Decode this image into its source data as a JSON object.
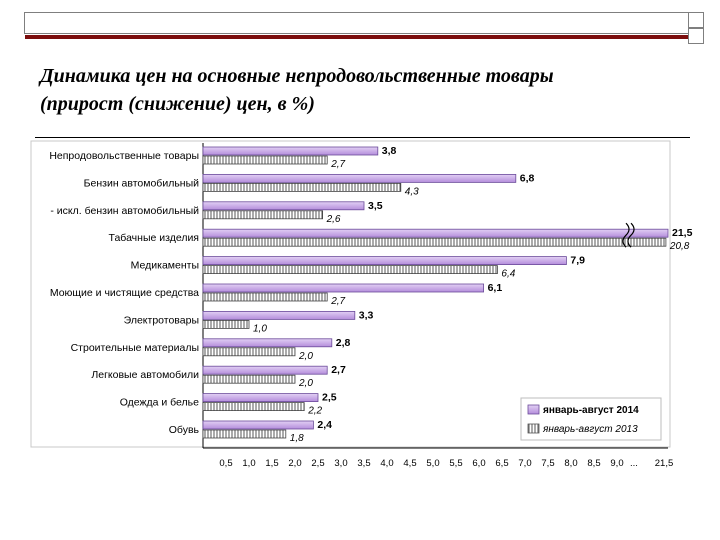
{
  "title_line1": "Динамика цен на основные  непродовольственные товары",
  "title_line2": "(прирост (снижение) цен, в %)",
  "chart_data": {
    "type": "bar",
    "orientation": "horizontal",
    "categories": [
      "Непродовольственные товары",
      "Бензин автомобильный",
      "- искл. бензин автомобильный",
      "Табачные изделия",
      "Медикаменты",
      "Моющие и чистящие средства",
      "Электротовары",
      "Строительные материалы",
      "Легковые автомобили",
      "Одежда и белье",
      "Обувь"
    ],
    "series": [
      {
        "name": "январь-август 2014",
        "values": [
          3.8,
          6.8,
          3.5,
          21.5,
          7.9,
          6.1,
          3.3,
          2.8,
          2.7,
          2.5,
          2.4
        ],
        "color": "#c9a9e6",
        "style": "solid"
      },
      {
        "name": "январь-август 2013",
        "values": [
          2.7,
          4.3,
          2.6,
          20.8,
          6.4,
          2.7,
          1.0,
          2.0,
          2.0,
          2.2,
          1.8
        ],
        "color": "#ffffff",
        "style": "hatched"
      }
    ],
    "series_labels": [
      [
        "3,8",
        "6,8",
        "3,5",
        "21,5",
        "7,9",
        "6,1",
        "3,3",
        "2,8",
        "2,7",
        "2,5",
        "2,4"
      ],
      [
        "2,7",
        "4,3",
        "2,6",
        "20,8",
        "6,4",
        "2,7",
        "1,0",
        "2,0",
        "2,0",
        "2,2",
        "1,8"
      ]
    ],
    "xtick_labels": [
      "0,5",
      "1,0",
      "1,5",
      "2,0",
      "2,5",
      "3,0",
      "3,5",
      "4,0",
      "4,5",
      "5,0",
      "5,5",
      "6,0",
      "6,5",
      "7,0",
      "7,5",
      "8,0",
      "8,5",
      "9,0",
      "...",
      "21,5"
    ],
    "xlim": [
      0.5,
      9.0
    ],
    "axis_break": true,
    "grid": false,
    "legend_position": "bottom-right"
  }
}
